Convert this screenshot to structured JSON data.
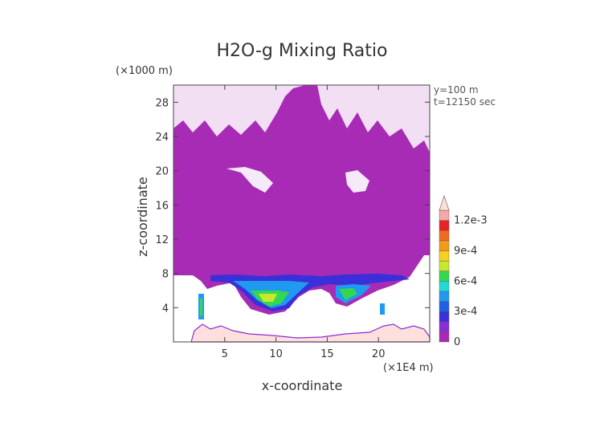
{
  "chart_data": {
    "type": "heatmap",
    "title": "H2O-g Mixing Ratio",
    "xlabel": "x-coordinate",
    "ylabel": "z-coordinate",
    "x_unit": "(×1E4 m)",
    "y_unit": "(×1000 m)",
    "info": [
      "y=100 m",
      "t=12150 sec"
    ],
    "xlim": [
      0,
      25
    ],
    "ylim": [
      0,
      30
    ],
    "xticks": [
      5,
      10,
      15,
      20
    ],
    "yticks": [
      4,
      8,
      12,
      16,
      20,
      24,
      28
    ],
    "colorbar": {
      "labels": [
        "0",
        "3e-4",
        "6e-4",
        "9e-4",
        "1.2e-3"
      ],
      "levels": [
        0,
        0.0001,
        0.0002,
        0.0003,
        0.0004,
        0.0005,
        0.0006,
        0.0007,
        0.0008,
        0.0009,
        0.001,
        0.0011,
        0.0012
      ],
      "colors": [
        "#a72bb5",
        "#8a2cd8",
        "#3a2fd8",
        "#1f5fe8",
        "#1f9af0",
        "#25d8d8",
        "#34d850",
        "#c8e830",
        "#f5d21f",
        "#f39a18",
        "#f26a1b",
        "#e82323",
        "#f6a8a8",
        "#fde0dc"
      ]
    }
  }
}
